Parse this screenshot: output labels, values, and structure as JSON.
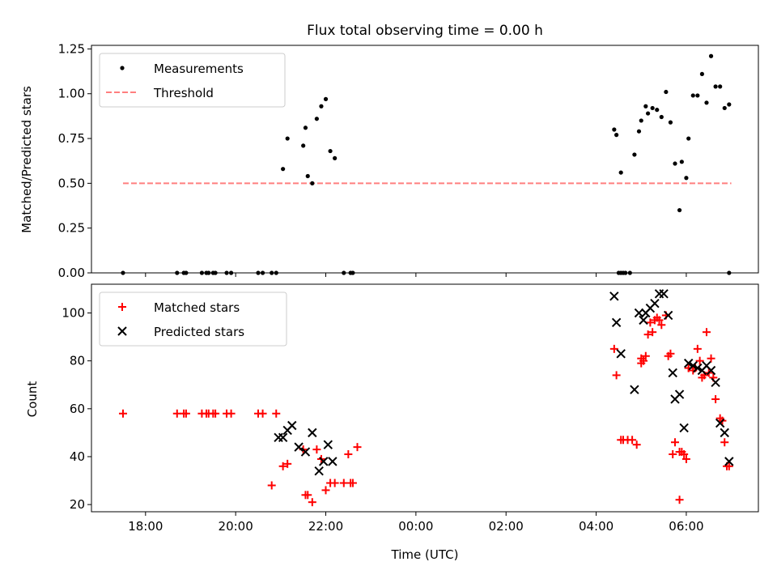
{
  "chart_data": [
    {
      "type": "scatter",
      "title": "Flux total observing time = 0.00 h",
      "xlabel": "",
      "ylabel": "Matched/Predicted stars",
      "ylim": [
        0,
        1.27
      ],
      "yticks": [
        0.0,
        0.25,
        0.5,
        0.75,
        1.0,
        1.25
      ],
      "ytick_labels": [
        "0.00",
        "0.25",
        "0.50",
        "0.75",
        "1.00",
        "1.25"
      ],
      "legend_position": "top-left",
      "legend": [
        {
          "label": "Measurements",
          "marker": "dot",
          "color": "#000000"
        },
        {
          "label": "Threshold",
          "marker": "dashed-line",
          "color": "#ff7f7f"
        }
      ],
      "threshold": {
        "value": 0.5,
        "x_start": -6.5,
        "x_end": 7.0
      },
      "series": [
        {
          "name": "Measurements",
          "x": [
            -6.5,
            -5.3,
            -5.15,
            -5.1,
            -4.75,
            -4.65,
            -4.6,
            -4.5,
            -4.45,
            -4.2,
            -4.1,
            -3.5,
            -3.4,
            -3.2,
            -3.1,
            -2.95,
            -2.85,
            -2.5,
            -2.45,
            -2.4,
            -2.3,
            -2.2,
            -2.1,
            -2.0,
            -1.9,
            -1.8,
            -1.6,
            -1.45,
            -1.4,
            4.4,
            4.45,
            4.55,
            4.6,
            4.75,
            4.85,
            4.95,
            5.0,
            5.1,
            5.15,
            5.25,
            5.35,
            5.45,
            5.55,
            5.65,
            5.75,
            5.85,
            5.9,
            6.0,
            6.05,
            6.15,
            6.25,
            6.35,
            6.45,
            6.55,
            6.65,
            6.75,
            6.85,
            6.95,
            4.5,
            4.55,
            4.65,
            6.95
          ],
          "y": [
            0,
            0,
            0,
            0,
            0,
            0,
            0,
            0,
            0,
            0,
            0,
            0,
            0,
            0,
            0,
            0.58,
            0.75,
            0.71,
            0.81,
            0.54,
            0.5,
            0.86,
            0.93,
            0.97,
            0.68,
            0.64,
            0,
            0,
            0,
            0.8,
            0.77,
            0.56,
            0,
            0,
            0.66,
            0.79,
            0.85,
            0.93,
            0.89,
            0.92,
            0.91,
            0.87,
            1.01,
            0.84,
            0.61,
            0.35,
            0.62,
            0.53,
            0.75,
            0.99,
            0.99,
            1.11,
            0.95,
            1.21,
            1.04,
            1.04,
            0.92,
            0.94,
            0,
            0,
            0,
            0
          ]
        }
      ]
    },
    {
      "type": "scatter",
      "title": "",
      "xlabel": "Time (UTC)",
      "ylabel": "Count",
      "ylim": [
        17,
        112
      ],
      "yticks": [
        20,
        40,
        60,
        80,
        100
      ],
      "ytick_labels": [
        "20",
        "40",
        "60",
        "80",
        "100"
      ],
      "xlim": [
        -7.2,
        7.6
      ],
      "xticks": [
        -6,
        -4,
        -2,
        0,
        2,
        4,
        6
      ],
      "xtick_labels": [
        "18:00",
        "20:00",
        "22:00",
        "00:00",
        "02:00",
        "04:00",
        "06:00"
      ],
      "legend_position": "top-left",
      "legend": [
        {
          "label": "Matched stars",
          "marker": "plus",
          "color": "#ff0000"
        },
        {
          "label": "Predicted stars",
          "marker": "x",
          "color": "#000000"
        }
      ],
      "series": [
        {
          "name": "Matched stars",
          "x": [
            -6.5,
            -5.3,
            -5.15,
            -5.1,
            -4.75,
            -4.65,
            -4.6,
            -4.5,
            -4.45,
            -4.2,
            -4.1,
            -3.5,
            -3.4,
            -3.2,
            -3.1,
            -2.95,
            -2.85,
            -2.5,
            -2.45,
            -2.4,
            -2.3,
            -2.2,
            -2.1,
            -2.0,
            -1.9,
            -1.8,
            -1.6,
            -1.45,
            -1.4,
            -1.5,
            -1.3,
            4.4,
            4.45,
            4.55,
            4.6,
            4.7,
            4.8,
            4.9,
            5.0,
            5.1,
            5.15,
            5.25,
            5.35,
            5.45,
            5.55,
            5.65,
            5.75,
            5.85,
            5.9,
            6.0,
            6.05,
            6.15,
            6.25,
            6.35,
            6.45,
            6.55,
            6.65,
            6.75,
            6.85,
            6.95,
            5.0,
            5.05,
            5.6,
            5.7,
            5.85,
            5.95,
            6.05,
            6.3,
            6.5,
            6.6,
            6.8,
            6.9,
            5.4,
            5.2,
            5.3,
            6.2,
            6.4
          ],
          "y": [
            58,
            58,
            58,
            58,
            58,
            58,
            58,
            58,
            58,
            58,
            58,
            58,
            58,
            28,
            58,
            36,
            37,
            43,
            24,
            24,
            21,
            43,
            39,
            26,
            29,
            29,
            29,
            29,
            29,
            41,
            44,
            85,
            74,
            47,
            47,
            47,
            47,
            45,
            79,
            82,
            91,
            92,
            98,
            95,
            99,
            83,
            46,
            22,
            42,
            39,
            77,
            76,
            85,
            73,
            92,
            81,
            64,
            56,
            46,
            36,
            81,
            80,
            82,
            41,
            42,
            41,
            77,
            80,
            75,
            73,
            55,
            36,
            97,
            96,
            97,
            77,
            74
          ]
        },
        {
          "name": "Predicted stars",
          "x": [
            -3.05,
            -2.95,
            -2.85,
            -2.75,
            -2.6,
            -2.45,
            -2.3,
            -2.15,
            -2.05,
            -1.95,
            -1.85,
            4.4,
            4.45,
            4.55,
            4.85,
            4.95,
            5.05,
            5.1,
            5.2,
            5.3,
            5.4,
            5.5,
            5.6,
            5.7,
            5.75,
            5.85,
            5.95,
            6.05,
            6.15,
            6.25,
            6.35,
            6.45,
            6.55,
            6.65,
            6.75,
            6.85,
            6.95
          ],
          "y": [
            48,
            48,
            51,
            53,
            44,
            42,
            50,
            34,
            38,
            45,
            38,
            107,
            96,
            83,
            68,
            100,
            97,
            100,
            102,
            104,
            108,
            108,
            99,
            75,
            64,
            66,
            52,
            79,
            78,
            77,
            76,
            78,
            76,
            71,
            54,
            50,
            38
          ]
        }
      ]
    }
  ]
}
